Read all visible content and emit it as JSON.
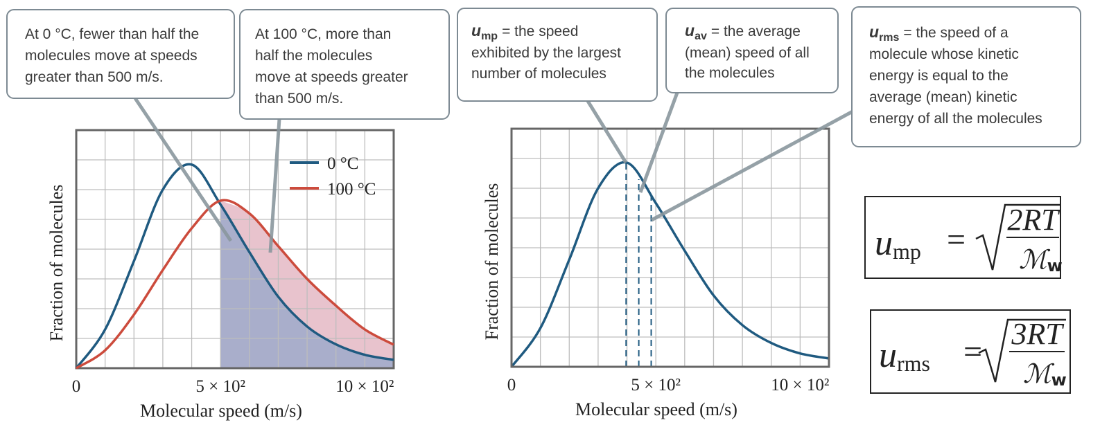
{
  "chart_data": [
    {
      "type": "line",
      "x": [
        0,
        100,
        200,
        300,
        400,
        500,
        600,
        700,
        800,
        900,
        1000,
        1100
      ],
      "series": [
        {
          "name": "0 °C",
          "color": "#1f5a80",
          "values": [
            0,
            1.3,
            3.6,
            6.0,
            6.84,
            5.5,
            3.9,
            2.4,
            1.4,
            0.8,
            0.45,
            0.28
          ],
          "shade_color": "#a9aecb"
        },
        {
          "name": "100 °C",
          "color": "#cc4b3c",
          "values": [
            0,
            0.6,
            1.8,
            3.3,
            4.7,
            5.63,
            5.2,
            4.1,
            3.0,
            2.1,
            1.3,
            0.79
          ],
          "shade_color": "#e8c3cd"
        }
      ],
      "shade_from": 500,
      "xlim": [
        0,
        1100
      ],
      "ylim": [
        0,
        8
      ],
      "xticks": [
        0,
        {
          "value": 500,
          "label": "5 × 10²"
        },
        {
          "value": 1000,
          "label": "10 × 10²"
        }
      ],
      "xgrid": [
        100,
        200,
        300,
        400,
        500,
        600,
        700,
        800,
        900,
        1000
      ],
      "ygrid": [
        1,
        2,
        3,
        4,
        5,
        6,
        7
      ],
      "xlabel": "Molecular speed (m/s)",
      "ylabel": "Fraction of molecules",
      "legend": "upper right"
    },
    {
      "type": "line",
      "x": [
        0,
        100,
        200,
        300,
        400,
        500,
        600,
        700,
        800,
        900,
        1000,
        1100
      ],
      "series": [
        {
          "color": "#1f5a80",
          "values": [
            0,
            1.3,
            3.6,
            6.0,
            6.86,
            5.5,
            3.9,
            2.4,
            1.4,
            0.8,
            0.45,
            0.28
          ]
        }
      ],
      "dashed_x": [
        397,
        441,
        484
      ],
      "xlim": [
        0,
        1100
      ],
      "ylim": [
        0,
        8
      ],
      "xticks": [
        0,
        {
          "value": 500,
          "label": "5 × 10²"
        },
        {
          "value": 1000,
          "label": "10 × 10²"
        }
      ],
      "xgrid": [
        100,
        200,
        300,
        400,
        500,
        600,
        700,
        800,
        900,
        1000
      ],
      "ygrid": [
        1,
        2,
        3,
        4,
        5,
        6,
        7
      ],
      "xlabel": "Molecular speed (m/s)",
      "ylabel": "Fraction of molecules"
    }
  ],
  "callouts": [
    {
      "lines": [
        "At 0 °C, fewer than half the",
        "molecules move at speeds",
        "greater than 500 m/s."
      ]
    },
    {
      "lines": [
        "At 100 °C, more than",
        "half the molecules",
        "move at speeds greater",
        "than 500 m/s."
      ]
    },
    {
      "symbol": "u",
      "subscript": "mp",
      "lines": [
        "= the speed",
        "exhibited by the largest",
        "number of molecules"
      ]
    },
    {
      "symbol": "u",
      "subscript": "av",
      "lines": [
        "= the average",
        "(mean) speed of all",
        "the molecules"
      ]
    },
    {
      "symbol": "u",
      "subscript": "rms",
      "lines": [
        "= the speed of a",
        "molecule whose kinetic",
        "energy is equal to the",
        "average (mean) kinetic",
        "energy of all the molecules"
      ]
    }
  ],
  "formulas": [
    {
      "symbol": "u",
      "subscript": "mp",
      "equals": "=",
      "numerator": "2RT",
      "denominator": "ℳ",
      "denominator_sub": "w"
    },
    {
      "symbol": "u",
      "subscript": "rms",
      "equals": "=",
      "numerator": "3RT",
      "denominator": "ℳ",
      "denominator_sub": "w"
    }
  ]
}
